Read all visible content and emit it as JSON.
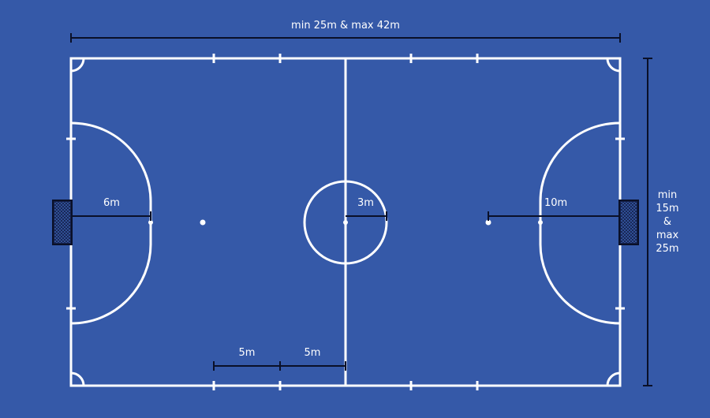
{
  "colors": {
    "background": "#3559a8",
    "lines": "#ffffff",
    "dimension": "#0a1028",
    "goal_fill": "#14204a"
  },
  "labels": {
    "length": "min 25m & max 42m",
    "width_lines": [
      "min",
      "15m",
      "&",
      "max",
      "25m"
    ],
    "penalty_radius": "6m",
    "center_circle": "3m",
    "second_penalty": "10m",
    "sub_zone_a": "5m",
    "sub_zone_b": "5m"
  }
}
